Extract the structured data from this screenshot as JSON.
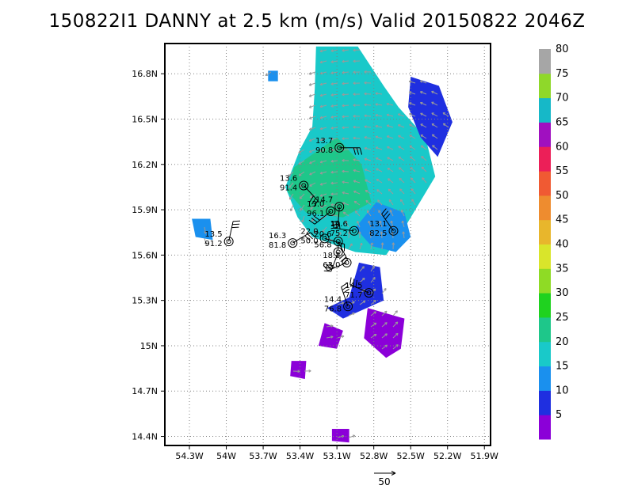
{
  "title": "150822I1 DANNY at 2.5 km (m/s) Valid 20150822 2046Z",
  "chart_data": {
    "type": "heatmap",
    "title": "150822I1 DANNY at 2.5 km (m/s) Valid 20150822 2046Z",
    "x_ticks": [
      "54.3W",
      "54W",
      "53.7W",
      "53.4W",
      "53.1W",
      "52.8W",
      "52.5W",
      "52.2W",
      "51.9W"
    ],
    "x_tick_values": [
      -54.3,
      -54.0,
      -53.7,
      -53.4,
      -53.1,
      -52.8,
      -52.5,
      -52.2,
      -51.9
    ],
    "y_ticks": [
      "14.4N",
      "14.7N",
      "15N",
      "15.3N",
      "15.6N",
      "15.9N",
      "16.2N",
      "16.5N",
      "16.8N"
    ],
    "y_tick_values": [
      14.4,
      14.7,
      15.0,
      15.3,
      15.6,
      15.9,
      16.2,
      16.5,
      16.8
    ],
    "xlim": [
      -54.5,
      -51.85
    ],
    "ylim": [
      14.34,
      17.0
    ],
    "grid": true,
    "colorbar": {
      "labels": [
        "5",
        "10",
        "15",
        "20",
        "25",
        "30",
        "35",
        "40",
        "45",
        "50",
        "55",
        "60",
        "65",
        "70",
        "75",
        "80"
      ],
      "colors": [
        "#8b00d8",
        "#1f2fe0",
        "#1a90ee",
        "#19c9c9",
        "#1ec78a",
        "#1fd21f",
        "#8fdb25",
        "#d9e52b",
        "#e8b62c",
        "#ee8c2f",
        "#f05a33",
        "#ec1f58",
        "#a010c0",
        "#16b8c8",
        "#8fd82a",
        "#a6a6a6"
      ]
    },
    "wind_field_regions": [
      {
        "name": "outer-cyan",
        "color": "#19c9c9",
        "polygon": [
          [
            -53.27,
            16.98
          ],
          [
            -52.93,
            16.98
          ],
          [
            -52.72,
            16.72
          ],
          [
            -52.6,
            16.58
          ],
          [
            -52.38,
            16.38
          ],
          [
            -52.3,
            16.12
          ],
          [
            -52.55,
            15.78
          ],
          [
            -52.7,
            15.6
          ],
          [
            -52.95,
            15.62
          ],
          [
            -53.3,
            15.72
          ],
          [
            -53.42,
            15.85
          ],
          [
            -53.52,
            16.05
          ],
          [
            -53.4,
            16.3
          ],
          [
            -53.3,
            16.45
          ],
          [
            -53.28,
            16.7
          ]
        ]
      },
      {
        "name": "core-green",
        "color": "#1ec78a",
        "polygon": [
          [
            -53.45,
            16.18
          ],
          [
            -53.1,
            16.38
          ],
          [
            -52.9,
            16.2
          ],
          [
            -52.82,
            15.95
          ],
          [
            -53.05,
            15.85
          ],
          [
            -53.35,
            15.88
          ],
          [
            -53.5,
            16.02
          ]
        ]
      },
      {
        "name": "east-blue",
        "color": "#1a90ee",
        "polygon": [
          [
            -52.78,
            15.95
          ],
          [
            -52.55,
            15.88
          ],
          [
            -52.5,
            15.72
          ],
          [
            -52.62,
            15.62
          ],
          [
            -52.82,
            15.66
          ],
          [
            -52.95,
            15.78
          ]
        ]
      },
      {
        "name": "ne-dark-blue",
        "color": "#1f2fe0",
        "polygon": [
          [
            -52.5,
            16.78
          ],
          [
            -52.27,
            16.72
          ],
          [
            -52.16,
            16.48
          ],
          [
            -52.28,
            16.25
          ],
          [
            -52.42,
            16.38
          ],
          [
            -52.52,
            16.58
          ]
        ]
      },
      {
        "name": "south-blue",
        "color": "#1f2fe0",
        "polygon": [
          [
            -52.92,
            15.55
          ],
          [
            -52.75,
            15.52
          ],
          [
            -52.72,
            15.3
          ],
          [
            -53.05,
            15.18
          ],
          [
            -53.18,
            15.25
          ],
          [
            -53.0,
            15.32
          ]
        ]
      },
      {
        "name": "s-purple-1",
        "color": "#8b00d8",
        "polygon": [
          [
            -52.85,
            15.25
          ],
          [
            -52.55,
            15.18
          ],
          [
            -52.58,
            14.98
          ],
          [
            -52.7,
            14.92
          ],
          [
            -52.88,
            15.05
          ]
        ]
      },
      {
        "name": "s-purple-2",
        "color": "#8b00d8",
        "polygon": [
          [
            -53.2,
            15.15
          ],
          [
            -53.05,
            15.1
          ],
          [
            -53.1,
            14.98
          ],
          [
            -53.25,
            15.0
          ]
        ]
      },
      {
        "name": "s-purple-3",
        "color": "#8b00d8",
        "polygon": [
          [
            -53.47,
            14.9
          ],
          [
            -53.35,
            14.9
          ],
          [
            -53.36,
            14.78
          ],
          [
            -53.48,
            14.8
          ]
        ]
      },
      {
        "name": "s-purple-4",
        "color": "#8b00d8",
        "polygon": [
          [
            -53.14,
            14.45
          ],
          [
            -53.0,
            14.45
          ],
          [
            -53.0,
            14.36
          ],
          [
            -53.14,
            14.37
          ]
        ]
      },
      {
        "name": "w-blue",
        "color": "#1a90ee",
        "polygon": [
          [
            -54.28,
            15.84
          ],
          [
            -54.13,
            15.84
          ],
          [
            -54.11,
            15.7
          ],
          [
            -54.25,
            15.72
          ]
        ]
      },
      {
        "name": "nw-blue",
        "color": "#1a90ee",
        "polygon": [
          [
            -53.66,
            16.82
          ],
          [
            -53.58,
            16.82
          ],
          [
            -53.58,
            16.75
          ],
          [
            -53.66,
            16.75
          ]
        ]
      }
    ],
    "observations": [
      {
        "lon": -53.08,
        "lat": 16.31,
        "speed": "13.7",
        "pressure": "90.8"
      },
      {
        "lon": -53.37,
        "lat": 16.06,
        "speed": "13.6",
        "pressure": "91.4"
      },
      {
        "lon": -53.08,
        "lat": 15.92,
        "speed": "14.7",
        "pressure": ""
      },
      {
        "lon": -53.15,
        "lat": 15.89,
        "speed": "13.0",
        "pressure": "96.1"
      },
      {
        "lon": -52.96,
        "lat": 15.76,
        "speed": "14.6",
        "pressure": "75.2"
      },
      {
        "lon": -52.64,
        "lat": 15.76,
        "speed": "13.1",
        "pressure": "82.5"
      },
      {
        "lon": -53.98,
        "lat": 15.69,
        "speed": "13.5",
        "pressure": "91.2"
      },
      {
        "lon": -53.46,
        "lat": 15.68,
        "speed": "16.3",
        "pressure": "81.8"
      },
      {
        "lon": -53.2,
        "lat": 15.71,
        "speed": "22.0",
        "pressure": "50.0"
      },
      {
        "lon": -53.09,
        "lat": 15.69,
        "speed": "20.6",
        "pressure": ""
      },
      {
        "lon": -53.09,
        "lat": 15.62,
        "speed": "56.8",
        "pressure": ""
      },
      {
        "lon": -53.02,
        "lat": 15.55,
        "speed": "18.2",
        "pressure": "63.0"
      },
      {
        "lon": -52.84,
        "lat": 15.35,
        "speed": "14.5",
        "pressure": "71.7"
      },
      {
        "lon": -53.01,
        "lat": 15.26,
        "speed": "14.4",
        "pressure": "76.8"
      }
    ],
    "vector_scale": {
      "label": "50"
    }
  }
}
